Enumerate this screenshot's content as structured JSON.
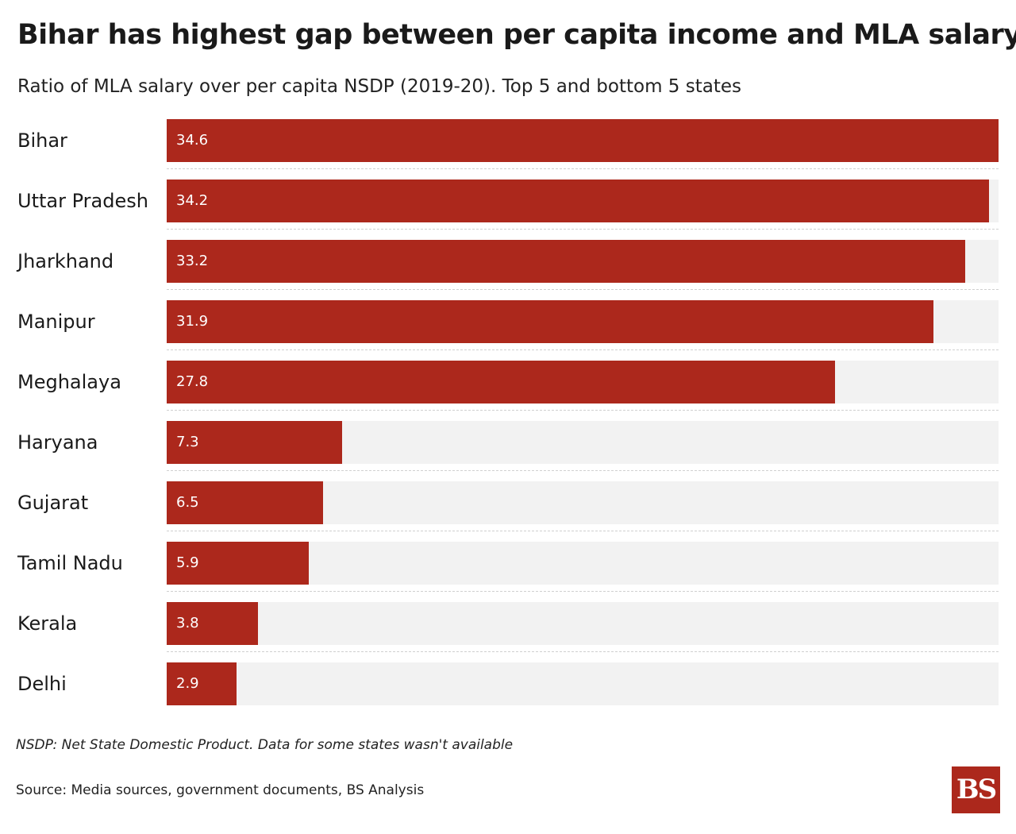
{
  "header": {
    "title": "Bihar has highest gap between per capita income and MLA salary",
    "subtitle": "Ratio of MLA salary over per capita NSDP (2019-20). Top 5 and bottom 5 states"
  },
  "footer": {
    "note": "NSDP: Net State Domestic Product. Data for some states wasn't available",
    "source": "Source: Media sources, government documents, BS Analysis",
    "logo_text": "BS"
  },
  "colors": {
    "bar": "#ac281c",
    "track": "#f2f2f2",
    "bar_label": "#ffffff"
  },
  "chart_data": {
    "type": "bar",
    "orientation": "horizontal",
    "categories": [
      "Bihar",
      "Uttar Pradesh",
      "Jharkhand",
      "Manipur",
      "Meghalaya",
      "Haryana",
      "Gujarat",
      "Tamil Nadu",
      "Kerala",
      "Delhi"
    ],
    "values": [
      34.6,
      34.2,
      33.2,
      31.9,
      27.8,
      7.3,
      6.5,
      5.9,
      3.8,
      2.9
    ],
    "value_labels": [
      "34.6",
      "34.2",
      "33.2",
      "31.9",
      "27.8",
      "7.3",
      "6.5",
      "5.9",
      "3.8",
      "2.9"
    ],
    "title": "Bihar has highest gap between per capita income and MLA salary",
    "subtitle": "Ratio of MLA salary over per capita NSDP (2019-20). Top 5 and bottom 5 states",
    "xlim": [
      0,
      34.6
    ],
    "grid": false,
    "legend": false
  }
}
